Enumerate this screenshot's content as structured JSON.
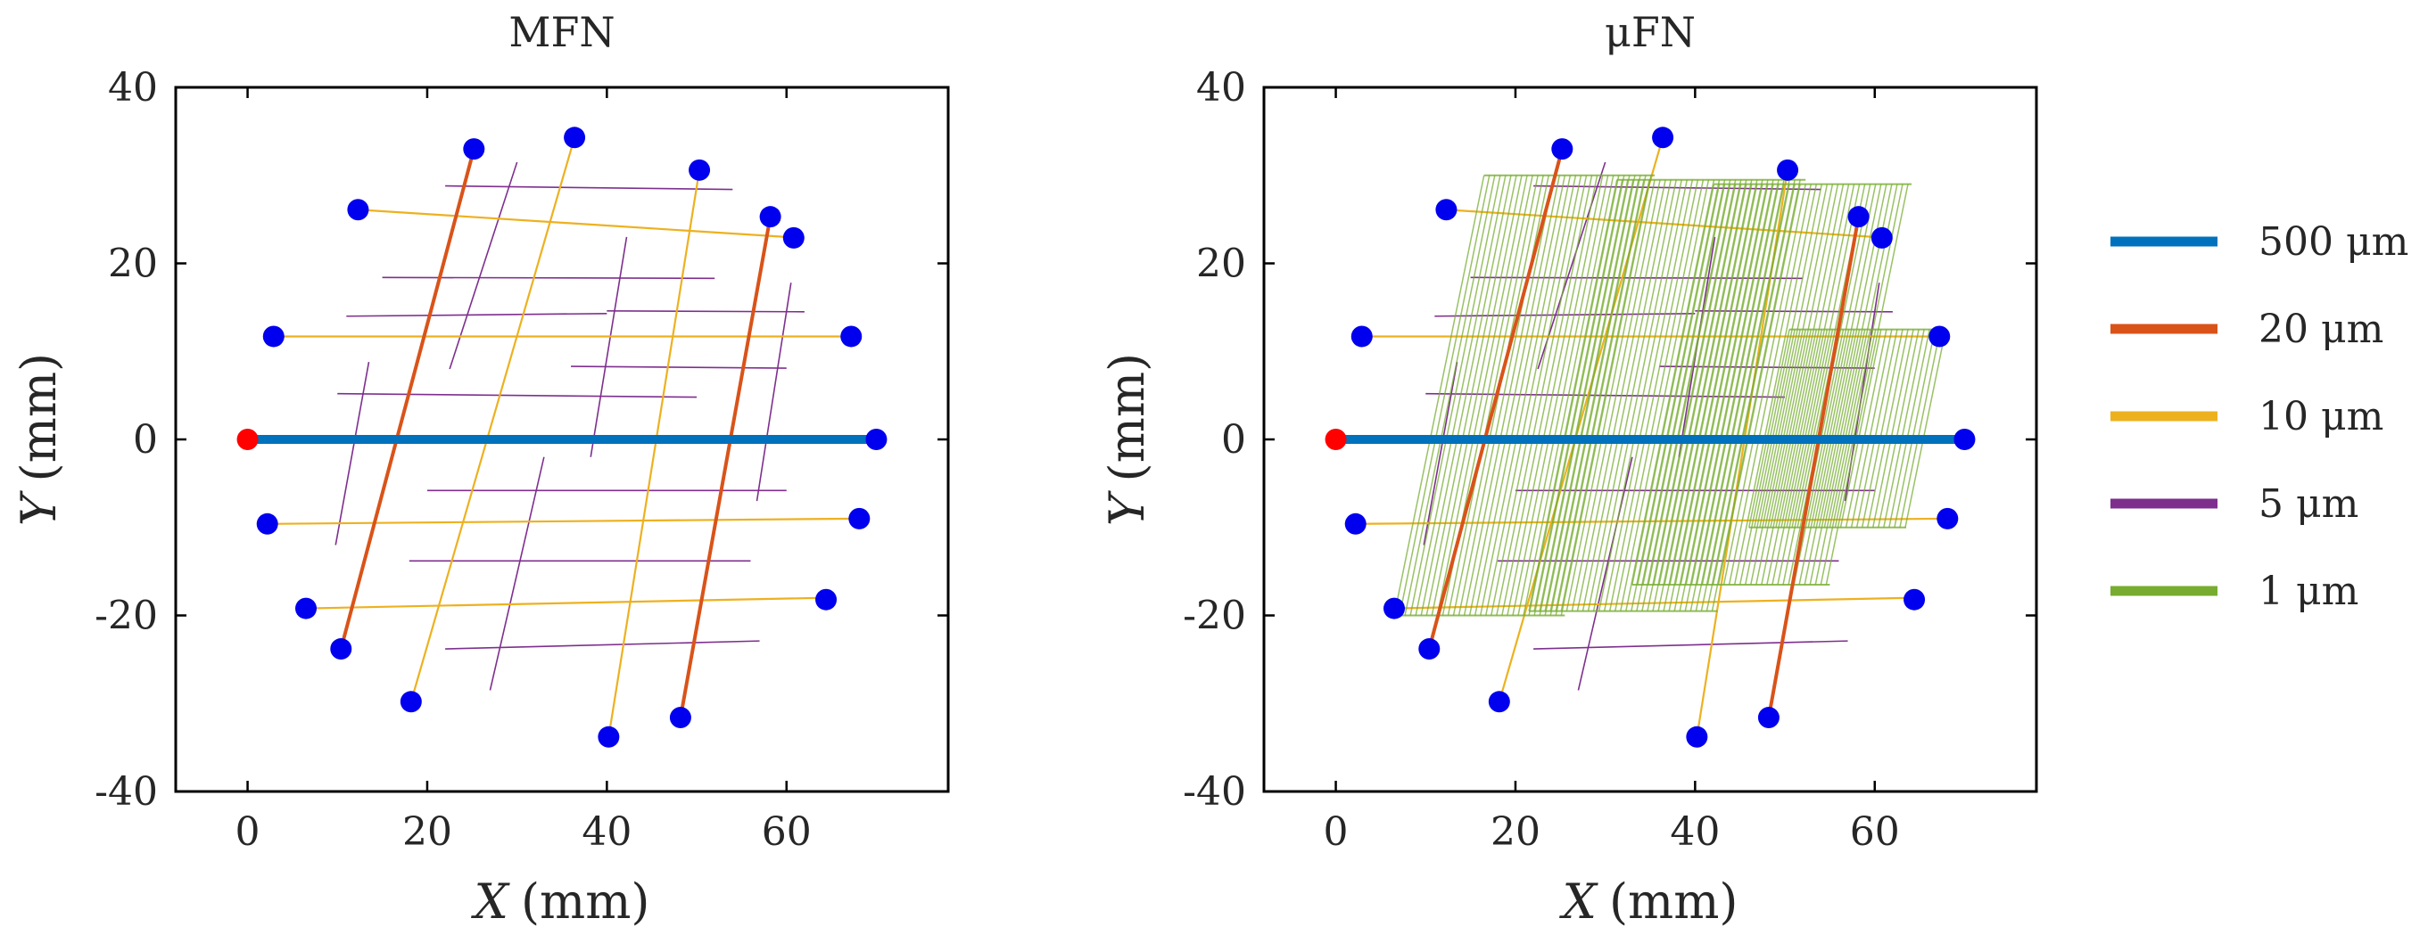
{
  "colors": {
    "um500": "#0072BD",
    "um20": "#D95319",
    "um10": "#EDB120",
    "um5": "#7E2F8E",
    "um1": "#77AC30",
    "terminal": "#0000EE",
    "source": "#FF0000"
  },
  "legend": {
    "items": [
      {
        "key": "um500",
        "label": "500 μm"
      },
      {
        "key": "um20",
        "label": "20 μm"
      },
      {
        "key": "um10",
        "label": "10 μm"
      },
      {
        "key": "um5",
        "label": "5 μm"
      },
      {
        "key": "um1",
        "label": "1 μm"
      }
    ]
  },
  "chart_data": [
    {
      "type": "scatter",
      "title": "MFN",
      "xlabel_var": "X",
      "xlabel_unit": "(mm)",
      "ylabel_var": "Y",
      "ylabel_unit": "(mm)",
      "xlim": [
        -8,
        78
      ],
      "ylim": [
        -40,
        40
      ],
      "xticks": [
        0,
        20,
        40,
        60
      ],
      "xtick_labels": [
        "0",
        "20",
        "40",
        "60"
      ],
      "yticks": [
        -40,
        -20,
        0,
        20,
        40
      ],
      "ytick_labels": [
        "-40",
        "-20",
        "0",
        "20",
        "40"
      ],
      "show_1um": false
    },
    {
      "type": "scatter",
      "title": "μFN",
      "xlabel_var": "X",
      "xlabel_unit": "(mm)",
      "ylabel_var": "Y",
      "ylabel_unit": "(mm)",
      "xlim": [
        -8,
        78
      ],
      "ylim": [
        -40,
        40
      ],
      "xticks": [
        0,
        20,
        40,
        60
      ],
      "xtick_labels": [
        "0",
        "20",
        "40",
        "60"
      ],
      "yticks": [
        -40,
        -20,
        0,
        20,
        40
      ],
      "ytick_labels": [
        "-40",
        "-20",
        "0",
        "20",
        "40"
      ],
      "show_1um": true
    }
  ],
  "network": {
    "vessels_500um": [
      [
        [
          0,
          0
        ],
        [
          70,
          0
        ]
      ]
    ],
    "vessels_20um": [
      [
        [
          25.2,
          33
        ],
        [
          10.4,
          -23.8
        ]
      ],
      [
        [
          58.2,
          25.3
        ],
        [
          48.2,
          -31.6
        ]
      ]
    ],
    "vessels_10um": [
      [
        [
          12.3,
          26.1
        ],
        [
          60,
          23
        ]
      ],
      [
        [
          2.9,
          11.7
        ],
        [
          67,
          11.7
        ]
      ],
      [
        [
          2.2,
          -9.6
        ],
        [
          68,
          -9
        ]
      ],
      [
        [
          6.5,
          -19.2
        ],
        [
          64,
          -18
        ]
      ],
      [
        [
          36.4,
          34.3
        ],
        [
          18.2,
          -29.8
        ]
      ],
      [
        [
          50.3,
          30.6
        ],
        [
          40.2,
          -33.8
        ]
      ]
    ],
    "vessels_5um": [
      [
        [
          22,
          28.8
        ],
        [
          54,
          28.4
        ]
      ],
      [
        [
          15,
          18.4
        ],
        [
          52,
          18.3
        ]
      ],
      [
        [
          11,
          14
        ],
        [
          40,
          14.3
        ]
      ],
      [
        [
          40,
          14.6
        ],
        [
          62,
          14.5
        ]
      ],
      [
        [
          36,
          8.3
        ],
        [
          60,
          8.1
        ]
      ],
      [
        [
          10,
          5.2
        ],
        [
          50,
          4.8
        ]
      ],
      [
        [
          20,
          -5.8
        ],
        [
          60,
          -5.8
        ]
      ],
      [
        [
          18,
          -13.8
        ],
        [
          56,
          -13.8
        ]
      ],
      [
        [
          22,
          -23.8
        ],
        [
          57,
          -22.9
        ]
      ],
      [
        [
          30,
          31.5
        ],
        [
          22.5,
          8
        ]
      ],
      [
        [
          13.5,
          8.8
        ],
        [
          9.8,
          -12
        ]
      ],
      [
        [
          42.2,
          23
        ],
        [
          38.2,
          -2
        ]
      ],
      [
        [
          33,
          -2
        ],
        [
          27,
          -28.5
        ]
      ],
      [
        [
          60.5,
          17.8
        ],
        [
          56.7,
          -7
        ]
      ]
    ],
    "terminals": [
      [
        25.2,
        33
      ],
      [
        36.4,
        34.3
      ],
      [
        50.3,
        30.6
      ],
      [
        12.3,
        26.1
      ],
      [
        58.2,
        25.3
      ],
      [
        60.8,
        22.9
      ],
      [
        2.9,
        11.7
      ],
      [
        67.2,
        11.7
      ],
      [
        70,
        0
      ],
      [
        2.2,
        -9.6
      ],
      [
        68.1,
        -9
      ],
      [
        6.5,
        -19.2
      ],
      [
        64.4,
        -18.2
      ],
      [
        10.4,
        -23.8
      ],
      [
        18.2,
        -29.8
      ],
      [
        40.2,
        -33.8
      ],
      [
        48.2,
        -31.6
      ]
    ],
    "source": [
      0,
      0
    ],
    "capillary_bands": [
      {
        "x0": 6.5,
        "x1": 25.5,
        "y_bottom": -20,
        "y_top": 30,
        "spacing": 0.6
      },
      {
        "x0": 21.5,
        "x1": 42.5,
        "y_bottom": -19.5,
        "y_top": 29.5,
        "spacing": 0.6
      },
      {
        "x0": 33,
        "x1": 55,
        "y_bottom": -16.5,
        "y_top": 29,
        "spacing": 0.6
      },
      {
        "x0": 46,
        "x1": 63.5,
        "y_bottom": -10,
        "y_top": 12.5,
        "spacing": 0.6
      }
    ],
    "capillary_slope": 0.2
  }
}
